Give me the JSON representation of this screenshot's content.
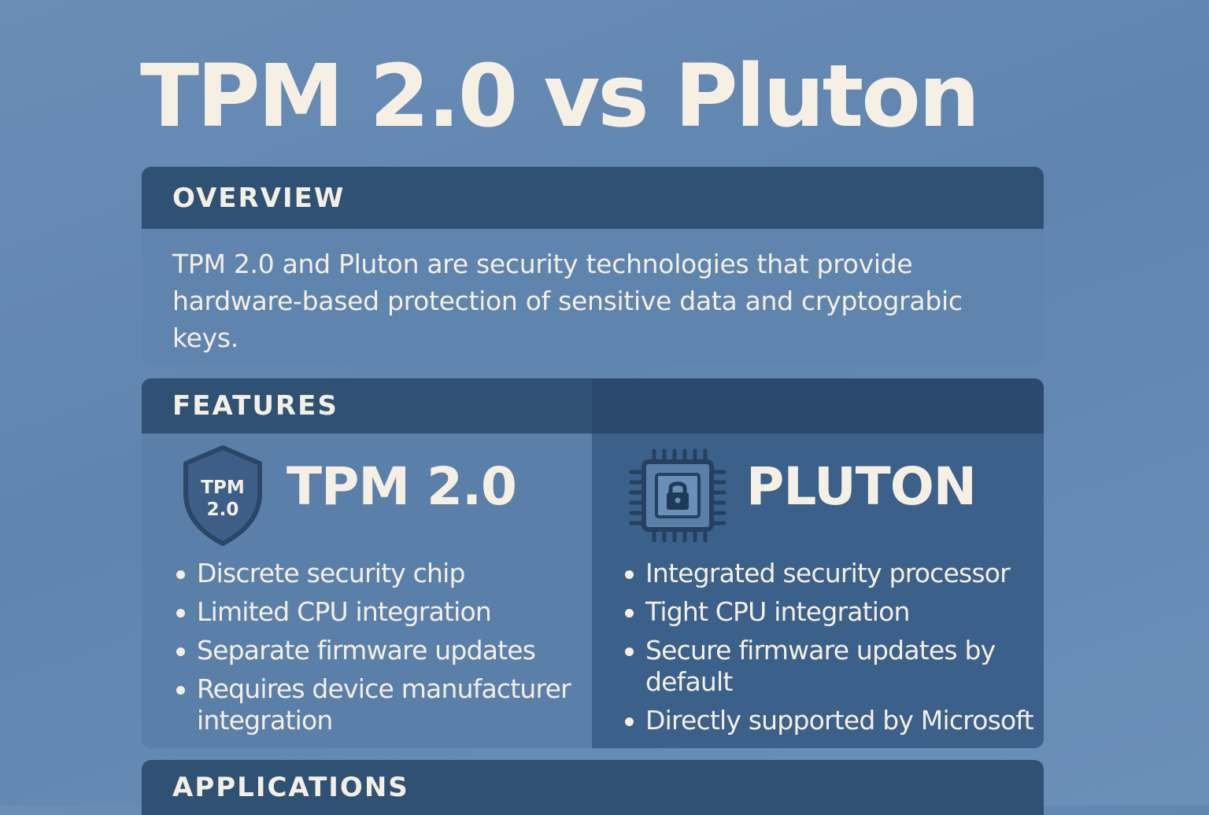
{
  "title": "TPM 2.0 vs Pluton",
  "overview": {
    "heading": "OVERVIEW",
    "text": "TPM 2.0 and Pluton are security technologies that provide hardware-based protection of sensitive data and cryptograbic keys."
  },
  "features": {
    "heading": "FEATURES",
    "tpm": {
      "title": "TPM 2.0",
      "icon": "shield-icon",
      "icon_text_line1": "TPM",
      "icon_text_line2": "2.0",
      "items": [
        "Discrete security chip",
        "Limited CPU integration",
        "Separate firmware updates",
        "Requires device manufacturer integration"
      ]
    },
    "pluton": {
      "title": "PLUTON",
      "icon": "chip-lock-icon",
      "items": [
        "Integrated security processor",
        "Tight CPU integration",
        "Secure firmware updates by default",
        "Directly supported by Microsoft"
      ]
    }
  },
  "applications": {
    "heading": "APPLICATIONS"
  },
  "colors": {
    "background": "#6589b3",
    "header_bar": "#2f5173",
    "pluton_column": "#3b6089",
    "text": "#f4efe4"
  }
}
